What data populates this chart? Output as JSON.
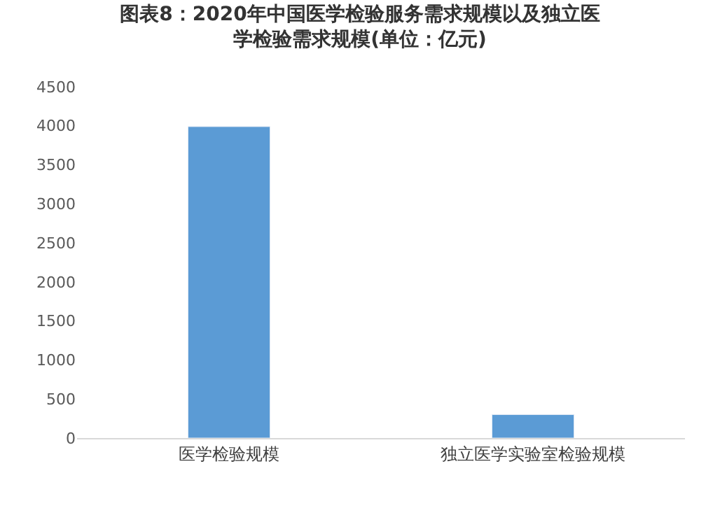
{
  "chart_data": {
    "type": "bar",
    "title": "图表8：2020年中国医学检验服务需求规模以及独立医学检验需求规模(单位：亿元)",
    "categories": [
      "医学检验规模",
      "独立医学实验室检验规模"
    ],
    "values": [
      3990,
      300
    ],
    "color": "#5b9bd5",
    "ylim": [
      0,
      4500
    ],
    "yticks": [
      0,
      500,
      1000,
      1500,
      2000,
      2500,
      3000,
      3500,
      4000,
      4500
    ],
    "legend": false
  }
}
